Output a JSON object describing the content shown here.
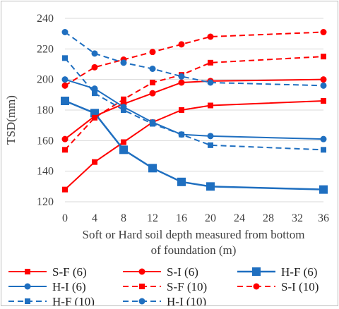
{
  "chart_data": {
    "type": "line",
    "xlabel_lines": [
      "Soft or Hard soil depth  measured from bottom",
      "of foundation (m)"
    ],
    "ylabel": "TSD(mm)",
    "ylim": [
      120,
      240
    ],
    "y_ticks": [
      120,
      140,
      160,
      180,
      200,
      220,
      240
    ],
    "x_ticks": [
      0,
      4,
      8,
      12,
      16,
      20,
      24,
      28,
      32,
      36
    ],
    "grid": "horizontal",
    "legend_position": "bottom",
    "series": [
      {
        "name": "S-F (6)",
        "color": "#ff0000",
        "dash": "solid",
        "marker": "square",
        "x": [
          0,
          4,
          8,
          12,
          16,
          20,
          36
        ],
        "values": [
          128,
          146,
          159,
          172,
          180,
          183,
          186
        ]
      },
      {
        "name": "S-I (6)",
        "color": "#ff0000",
        "dash": "solid",
        "marker": "circle",
        "x": [
          0,
          4,
          8,
          12,
          16,
          20,
          36
        ],
        "values": [
          161,
          176,
          184,
          191,
          198,
          199,
          200
        ]
      },
      {
        "name": "H-F (6)",
        "color": "#1f6fc0",
        "dash": "solid",
        "marker": "square-large",
        "x": [
          0,
          4,
          8,
          12,
          16,
          20,
          36
        ],
        "values": [
          186,
          178,
          154,
          142,
          133,
          130,
          128
        ]
      },
      {
        "name": "H-I (6)",
        "color": "#1f6fc0",
        "dash": "solid",
        "marker": "circle",
        "x": [
          0,
          4,
          8,
          12,
          16,
          20,
          36
        ],
        "values": [
          200,
          194,
          182,
          172,
          164,
          163,
          161
        ]
      },
      {
        "name": "S-F (10)",
        "color": "#ff0000",
        "dash": "dashed",
        "marker": "square",
        "x": [
          0,
          4,
          8,
          12,
          16,
          20,
          36
        ],
        "values": [
          154,
          175,
          187,
          198,
          203,
          211,
          215
        ]
      },
      {
        "name": "S-I (10)",
        "color": "#ff0000",
        "dash": "dashed",
        "marker": "circle",
        "x": [
          0,
          4,
          8,
          12,
          16,
          20,
          36
        ],
        "values": [
          196,
          208,
          213,
          218,
          223,
          228,
          231
        ]
      },
      {
        "name": "H-F (10)",
        "color": "#1f6fc0",
        "dash": "dashed",
        "marker": "square",
        "x": [
          0,
          4,
          8,
          12,
          16,
          20,
          36
        ],
        "values": [
          214,
          191,
          180,
          171,
          164,
          157,
          154
        ]
      },
      {
        "name": "H-I (10)",
        "color": "#1f6fc0",
        "dash": "dashed",
        "marker": "circle",
        "x": [
          0,
          4,
          8,
          12,
          16,
          20,
          36
        ],
        "values": [
          231,
          217,
          211,
          207,
          202,
          198,
          196
        ]
      }
    ]
  }
}
